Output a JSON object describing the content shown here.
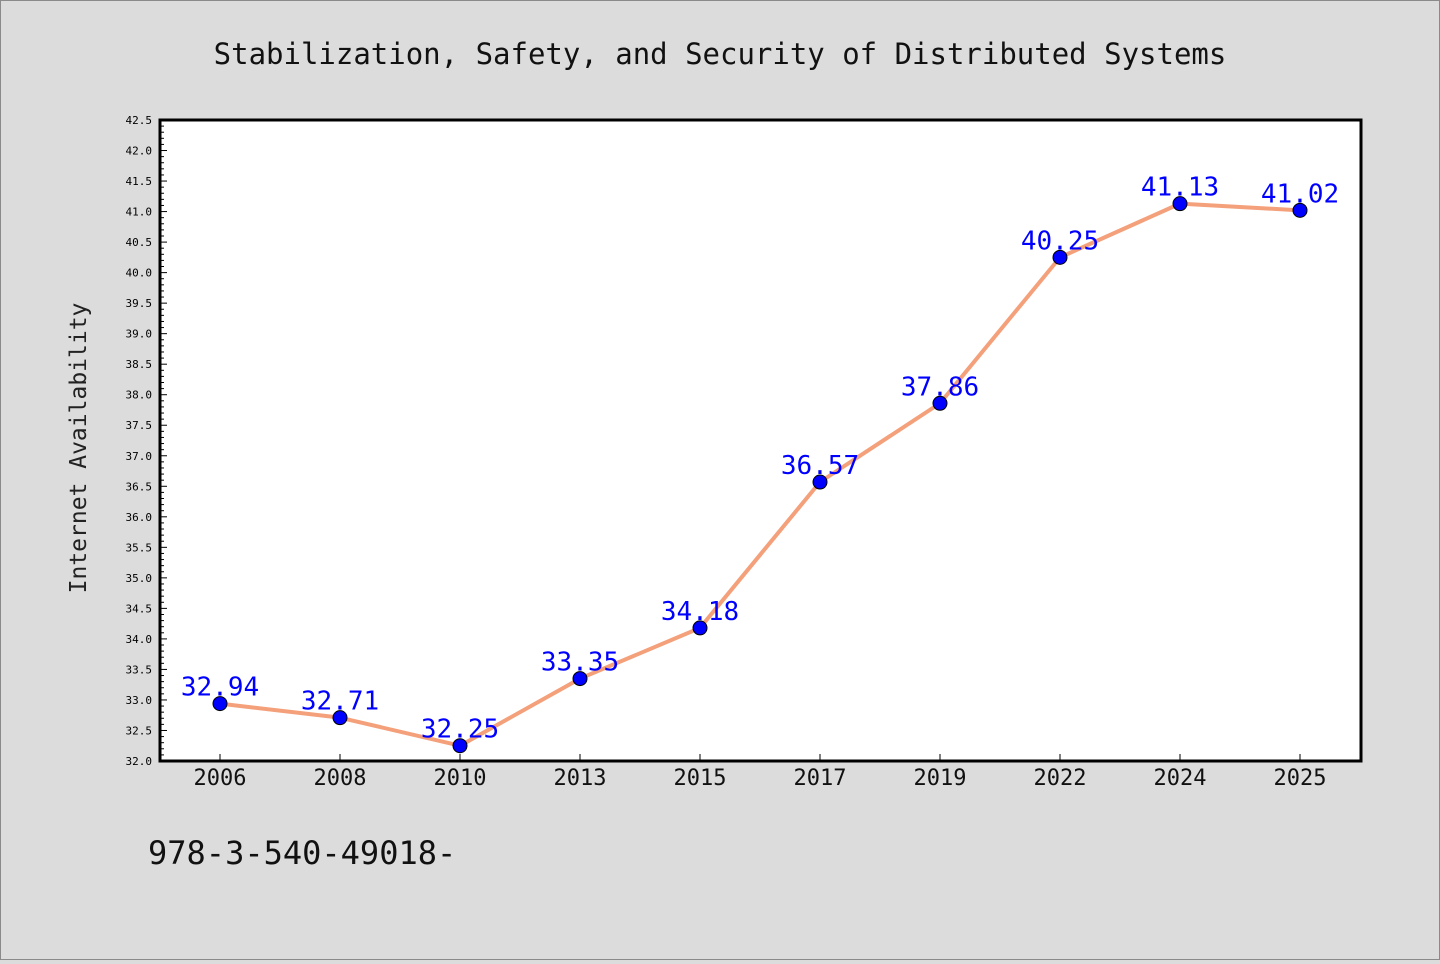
{
  "chart_data": {
    "type": "line",
    "title": "Stabilization, Safety, and Security of Distributed Systems",
    "ylabel": "Internet Availability",
    "xlabel": "",
    "categories": [
      "2006",
      "2008",
      "2010",
      "2013",
      "2015",
      "2017",
      "2019",
      "2022",
      "2024",
      "2025"
    ],
    "series": [
      {
        "values": [
          32.94,
          32.71,
          32.25,
          33.35,
          34.18,
          36.57,
          37.86,
          40.25,
          41.13,
          41.02
        ]
      }
    ],
    "data_labels": [
      "32.94",
      "32.71",
      "32.25",
      "33.35",
      "34.18",
      "36.57",
      "37.86",
      "40.25",
      "41.13",
      "41.02"
    ],
    "ylim": [
      32.0,
      42.5
    ],
    "ytick_step": 0.5,
    "grid": false,
    "annotation": "978-3-540-49018-",
    "colors": {
      "line": "#f4a07a",
      "marker": "#0000ff",
      "data_label": "#0000ff",
      "background": "#dcdcdc",
      "plot_area": "#ffffff"
    }
  }
}
